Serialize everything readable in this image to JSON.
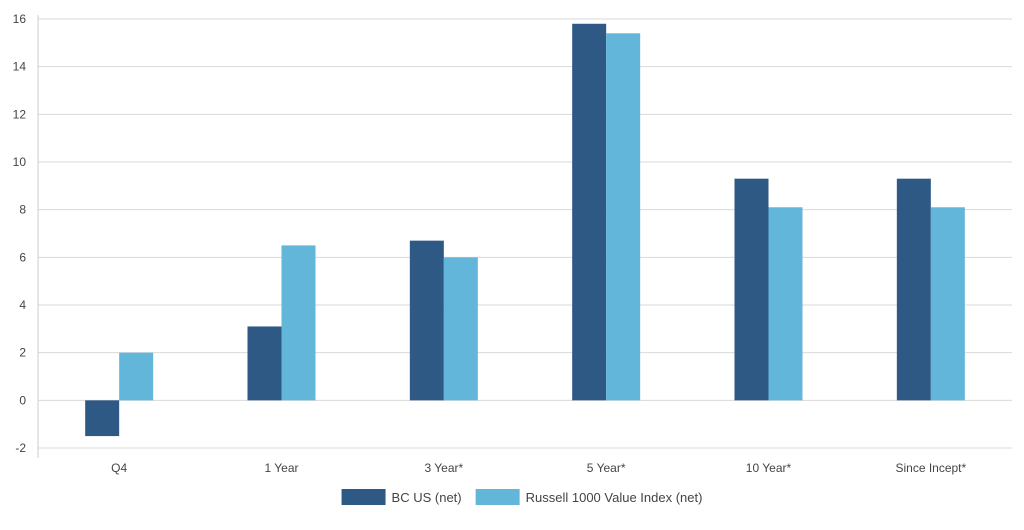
{
  "chart_data": {
    "type": "bar",
    "categories": [
      "Q4",
      "1 Year",
      "3 Year*",
      "5 Year*",
      "10 Year*",
      "Since Incept*"
    ],
    "series": [
      {
        "name": "BC US (net)",
        "color": "#2f5985",
        "values": [
          -1.5,
          3.1,
          6.7,
          15.8,
          9.3,
          9.3
        ]
      },
      {
        "name": "Russell 1000 Value Index (net)",
        "color": "#62b6da",
        "values": [
          2.0,
          6.5,
          6.0,
          15.4,
          8.1,
          8.1
        ]
      }
    ],
    "yticks": [
      -2,
      0,
      2,
      4,
      6,
      8,
      10,
      12,
      14,
      16
    ],
    "ylim": [
      -2,
      16
    ],
    "grid": true,
    "legend_position": "bottom-center",
    "title": "",
    "xlabel": "",
    "ylabel": ""
  }
}
